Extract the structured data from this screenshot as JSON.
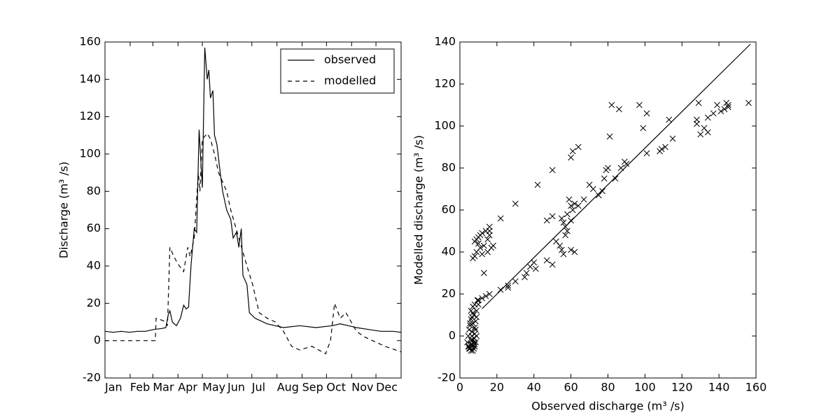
{
  "chart_data": [
    {
      "type": "line",
      "ylabel": "Discharge (m³ /s)",
      "xlim": [
        0,
        365
      ],
      "ylim": [
        -20,
        160
      ],
      "xticks": [
        {
          "value": 0,
          "label": "Jan"
        },
        {
          "value": 31,
          "label": "Feb"
        },
        {
          "value": 59,
          "label": "Mar"
        },
        {
          "value": 90,
          "label": "Apr"
        },
        {
          "value": 120,
          "label": "May"
        },
        {
          "value": 151,
          "label": "Jun"
        },
        {
          "value": 181,
          "label": "Jul"
        },
        {
          "value": 212,
          "label": "Aug"
        },
        {
          "value": 243,
          "label": "Sep"
        },
        {
          "value": 273,
          "label": "Oct"
        },
        {
          "value": 304,
          "label": "Nov"
        },
        {
          "value": 334,
          "label": "Dec"
        }
      ],
      "yticks": [
        -20,
        0,
        20,
        40,
        60,
        80,
        100,
        120,
        140,
        160
      ],
      "legend": "upper right",
      "series": [
        {
          "name": "observed",
          "color": "#000000",
          "dash": "solid",
          "x": [
            0,
            10,
            20,
            30,
            40,
            50,
            60,
            70,
            75,
            78,
            80,
            83,
            88,
            93,
            97,
            100,
            103,
            106,
            110,
            113,
            116,
            120,
            123,
            126,
            128,
            130,
            133,
            135,
            138,
            142,
            145,
            150,
            155,
            158,
            162,
            165,
            168,
            170,
            175,
            178,
            185,
            190,
            200,
            210,
            220,
            240,
            260,
            280,
            290,
            300,
            310,
            325,
            340,
            355,
            365
          ],
          "values": [
            5,
            4.5,
            5,
            4.5,
            5,
            5,
            6,
            6.5,
            7,
            14,
            16,
            10,
            8,
            12,
            19,
            17,
            18,
            40,
            60,
            58,
            113,
            82,
            157,
            140,
            145,
            130,
            134,
            110,
            105,
            90,
            80,
            70,
            65,
            55,
            58,
            50,
            60,
            35,
            30,
            15,
            12,
            11,
            9,
            8,
            7,
            8,
            7,
            8,
            9,
            8,
            7,
            6,
            5,
            5,
            4.5
          ]
        },
        {
          "name": "modelled",
          "color": "#000000",
          "dash": "dashed",
          "x": [
            0,
            30,
            62,
            63,
            70,
            75,
            77,
            80,
            85,
            90,
            97,
            102,
            105,
            110,
            115,
            117,
            120,
            126,
            130,
            135,
            140,
            150,
            155,
            165,
            175,
            182,
            190,
            200,
            210,
            220,
            230,
            240,
            255,
            272,
            278,
            283,
            290,
            297,
            310,
            320,
            330,
            345,
            365
          ],
          "values": [
            0,
            0,
            0,
            12,
            11,
            10,
            8,
            50,
            45,
            41,
            37,
            50,
            45,
            55,
            90,
            80,
            108,
            111,
            108,
            100,
            90,
            80,
            70,
            55,
            40,
            30,
            15,
            12,
            10,
            5,
            -3,
            -5,
            -3,
            -7,
            0,
            20,
            12,
            15,
            5,
            2,
            0,
            -3,
            -6
          ]
        }
      ]
    },
    {
      "type": "scatter",
      "xlabel": "Observed discharge (m³ /s)",
      "ylabel": "Modelled discharge (m³ /s)",
      "xlim": [
        0,
        160
      ],
      "ylim": [
        -20,
        140
      ],
      "xticks": [
        0,
        20,
        40,
        60,
        80,
        100,
        120,
        140,
        160
      ],
      "yticks": [
        -20,
        0,
        20,
        40,
        60,
        80,
        100,
        120,
        140
      ],
      "color": "#000000",
      "marker": "x",
      "fit_line": {
        "x": [
          12,
          157
        ],
        "y": [
          13,
          139
        ]
      },
      "x": [
        4,
        4.5,
        5,
        5,
        5.5,
        5.5,
        6,
        6,
        6,
        6.5,
        6.5,
        7,
        7,
        7,
        7.5,
        7.5,
        8,
        8,
        8,
        8.5,
        8.5,
        9,
        9,
        9.5,
        5,
        6,
        7,
        8,
        4.5,
        6.5,
        7.5,
        8.5,
        5.5,
        6,
        7,
        8,
        9,
        6.5,
        7.5,
        10,
        7,
        8,
        8,
        9,
        9,
        10,
        11,
        11,
        12,
        13,
        14,
        15,
        16,
        16,
        17,
        18,
        15,
        10,
        12,
        16,
        13,
        10,
        12,
        14,
        16,
        22,
        26,
        26,
        30,
        35,
        36,
        38,
        40,
        41,
        47,
        50,
        52,
        54,
        55,
        56,
        57,
        57,
        58,
        56,
        55,
        60,
        61,
        62,
        62,
        60,
        64,
        67,
        70,
        72,
        75,
        77,
        78,
        79,
        80,
        81,
        82,
        84,
        86,
        87,
        89,
        90,
        97,
        99,
        101,
        101,
        108,
        109,
        111,
        113,
        115,
        128,
        128,
        129,
        130,
        132,
        134,
        134,
        137,
        139,
        141,
        143,
        144,
        145,
        145,
        156,
        30,
        42,
        50,
        22,
        47,
        50,
        58,
        59,
        60,
        61,
        64,
        60
      ],
      "values": [
        -3,
        0,
        -5,
        3,
        -6,
        5,
        -2,
        8,
        12,
        -4,
        2,
        -7,
        6,
        14,
        -1,
        10,
        -5,
        4,
        15,
        -3,
        7,
        0,
        12,
        17,
        -6,
        -4,
        -2,
        1,
        -5,
        9,
        -6,
        3,
        6,
        -7,
        11,
        -4,
        9,
        0,
        -3,
        15,
        37,
        38,
        45,
        40,
        46,
        47,
        42,
        48,
        49,
        43,
        50,
        46,
        52,
        50,
        42,
        43,
        40,
        44,
        39,
        48,
        30,
        17,
        18,
        19,
        20,
        22,
        23,
        24,
        26,
        28,
        30,
        33,
        35,
        32,
        36,
        34,
        45,
        43,
        41,
        39,
        48,
        52,
        50,
        54,
        56,
        55,
        60,
        63,
        40,
        41,
        62,
        65,
        72,
        70,
        67,
        69,
        75,
        79,
        80,
        95,
        110,
        75,
        108,
        80,
        83,
        82,
        110,
        99,
        106,
        87,
        88,
        89,
        90,
        103,
        94,
        101,
        103,
        111,
        96,
        99,
        97,
        104,
        106,
        110,
        107,
        108,
        111,
        110,
        109,
        111,
        63,
        72,
        79,
        56,
        55,
        57,
        58,
        65,
        85,
        88,
        90,
        62
      ]
    }
  ]
}
